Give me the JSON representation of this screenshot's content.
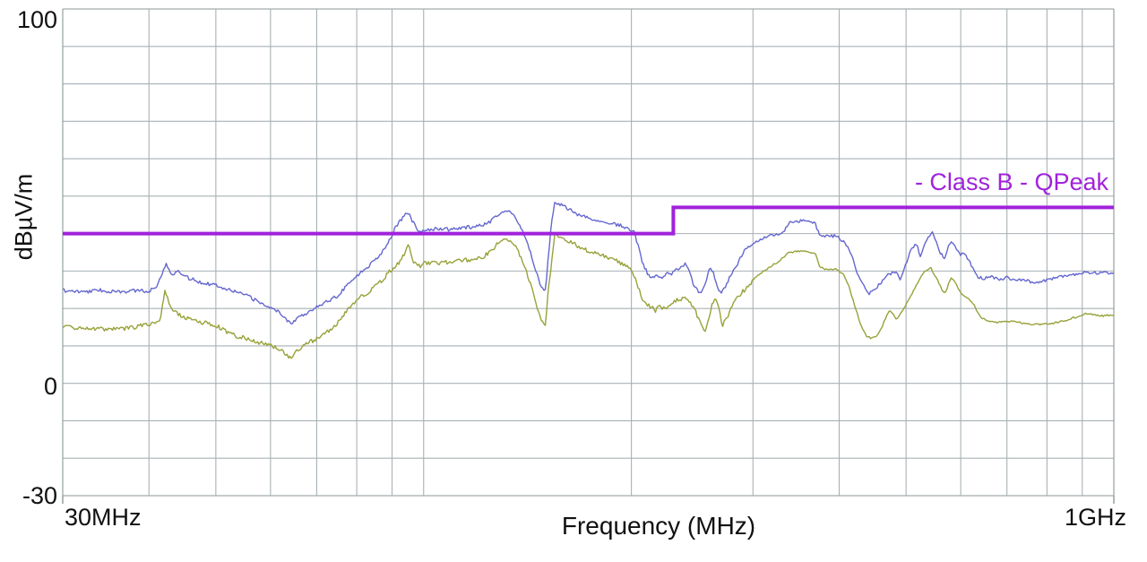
{
  "chart": {
    "y_axis": {
      "title": "dBµV/m",
      "tick_labels": {
        "top": "100",
        "zero": "0",
        "bottom": "-30"
      },
      "tick_values": [
        100,
        0,
        -30
      ],
      "min": -30,
      "max": 100,
      "grid_step_db": 10
    },
    "x_axis": {
      "title": "Frequency (MHz)",
      "start_label": "30MHz",
      "end_label": "1GHz",
      "min_mhz": 30,
      "max_mhz": 1000,
      "scale": "log",
      "gridline_frequencies_mhz": [
        30,
        40,
        50,
        60,
        70,
        80,
        90,
        100,
        200,
        300,
        400,
        500,
        600,
        700,
        800,
        900,
        1000
      ]
    },
    "legend": {
      "limit_label": "- Class B - QPeak"
    }
  },
  "colors": {
    "background": "#ffffff",
    "grid": "#a8b1b4",
    "border": "#8d979a",
    "text": "#111111",
    "limit": "#a122dc",
    "trace_blue": "#6467cf",
    "trace_olive": "#98a239"
  },
  "chart_data": {
    "type": "line",
    "title": "",
    "xlabel": "Frequency (MHz)",
    "ylabel": "dBµV/m",
    "x_scale": "log",
    "x_range_mhz": [
      30,
      1000
    ],
    "y_range_dbuv_m": [
      -30,
      100
    ],
    "grid": true,
    "legend_position": "top-right-inside",
    "limit_line": {
      "label": "- Class B - QPeak",
      "color": "#a122dc",
      "segments_mhz_db": [
        [
          30,
          40
        ],
        [
          230,
          40
        ],
        [
          230,
          47
        ],
        [
          1000,
          47
        ]
      ]
    },
    "series": [
      {
        "name": "trace_blue_peak",
        "color": "#6467cf",
        "seed": 7,
        "noise": {
          "amp_low": 2.0,
          "amp_high": 1.7,
          "split_mhz": 300
        },
        "points_mhz_db": [
          [
            30,
            24.8
          ],
          [
            32,
            24.4
          ],
          [
            34,
            24.9
          ],
          [
            36,
            24.3
          ],
          [
            38,
            24.8
          ],
          [
            40,
            24.6
          ],
          [
            41,
            26
          ],
          [
            42.3,
            31.8
          ],
          [
            43.2,
            29
          ],
          [
            44,
            30.3
          ],
          [
            45,
            28.5
          ],
          [
            46,
            27.9
          ],
          [
            48,
            26.8
          ],
          [
            50,
            26.3
          ],
          [
            52,
            25.2
          ],
          [
            54,
            24.2
          ],
          [
            56,
            23
          ],
          [
            58,
            21.5
          ],
          [
            60,
            20.3
          ],
          [
            62,
            18.8
          ],
          [
            63.5,
            16.8
          ],
          [
            64.3,
            15.9
          ],
          [
            65.5,
            17.5
          ],
          [
            67,
            18.4
          ],
          [
            69,
            19.8
          ],
          [
            71,
            21
          ],
          [
            73,
            22.2
          ],
          [
            75,
            23.3
          ],
          [
            78,
            27
          ],
          [
            81,
            29.5
          ],
          [
            84,
            32
          ],
          [
            87,
            35
          ],
          [
            89,
            38
          ],
          [
            91,
            41.5
          ],
          [
            93,
            44
          ],
          [
            94.7,
            45.8
          ],
          [
            96,
            44
          ],
          [
            97.5,
            41.5
          ],
          [
            99,
            40.3
          ],
          [
            101,
            40.9
          ],
          [
            105,
            41.3
          ],
          [
            110,
            41.1
          ],
          [
            115,
            41.6
          ],
          [
            120,
            42
          ],
          [
            124,
            42.7
          ],
          [
            127,
            44.5
          ],
          [
            130,
            46
          ],
          [
            132,
            46.2
          ],
          [
            134,
            45.6
          ],
          [
            136,
            44
          ],
          [
            138,
            42
          ],
          [
            140,
            39.5
          ],
          [
            142,
            36.5
          ],
          [
            144,
            32.5
          ],
          [
            146,
            29
          ],
          [
            148,
            26
          ],
          [
            150,
            24.6
          ],
          [
            151.5,
            33
          ],
          [
            153,
            42
          ],
          [
            155,
            48.6
          ],
          [
            158,
            47.8
          ],
          [
            162,
            46.5
          ],
          [
            167,
            45.2
          ],
          [
            172,
            44.3
          ],
          [
            178,
            43.6
          ],
          [
            185,
            43
          ],
          [
            192,
            42.3
          ],
          [
            198,
            41.2
          ],
          [
            202,
            40.3
          ],
          [
            205,
            36
          ],
          [
            208,
            31.5
          ],
          [
            211,
            29.5
          ],
          [
            214,
            28.3
          ],
          [
            218,
            28.8
          ],
          [
            222,
            28.2
          ],
          [
            225,
            29.3
          ],
          [
            228,
            29
          ],
          [
            232,
            30.2
          ],
          [
            236,
            31.3
          ],
          [
            239,
            31.8
          ],
          [
            243,
            29.8
          ],
          [
            246,
            26
          ],
          [
            250,
            24.4
          ],
          [
            253,
            24
          ],
          [
            257,
            28
          ],
          [
            260,
            31.5
          ],
          [
            263,
            29.5
          ],
          [
            267,
            25.5
          ],
          [
            270,
            24.3
          ],
          [
            274,
            26
          ],
          [
            278,
            28.5
          ],
          [
            283,
            31
          ],
          [
            288,
            33.5
          ],
          [
            292,
            35.4
          ],
          [
            300,
            37.5
          ],
          [
            307,
            38.5
          ],
          [
            313,
            39.2
          ],
          [
            320,
            39.7
          ],
          [
            328,
            39.9
          ],
          [
            334,
            41
          ],
          [
            338,
            42.9
          ],
          [
            345,
            43.3
          ],
          [
            355,
            43.5
          ],
          [
            365,
            43.2
          ],
          [
            370,
            42.5
          ],
          [
            372,
            40.8
          ],
          [
            376,
            39.4
          ],
          [
            385,
            39.3
          ],
          [
            395,
            39.4
          ],
          [
            400,
            38.9
          ],
          [
            406,
            37.7
          ],
          [
            412,
            36.2
          ],
          [
            418,
            33.5
          ],
          [
            424,
            30
          ],
          [
            430,
            27.5
          ],
          [
            436,
            25.3
          ],
          [
            442,
            24
          ],
          [
            448,
            24.6
          ],
          [
            455,
            26
          ],
          [
            460,
            27
          ],
          [
            466,
            28.5
          ],
          [
            471,
            28.9
          ],
          [
            478,
            29.5
          ],
          [
            484,
            29.9
          ],
          [
            490,
            27.8
          ],
          [
            497,
            30.5
          ],
          [
            503,
            33.5
          ],
          [
            509,
            36.1
          ],
          [
            515,
            36.8
          ],
          [
            520,
            36.4
          ],
          [
            524,
            34
          ],
          [
            530,
            36.5
          ],
          [
            537,
            38.5
          ],
          [
            546,
            40.2
          ],
          [
            555,
            37
          ],
          [
            562,
            34.5
          ],
          [
            569,
            33.5
          ],
          [
            575,
            36.5
          ],
          [
            582,
            38.3
          ],
          [
            590,
            36
          ],
          [
            598,
            34.3
          ],
          [
            607,
            34.6
          ],
          [
            617,
            33
          ],
          [
            627,
            30.1
          ],
          [
            637,
            28.3
          ],
          [
            650,
            28
          ],
          [
            665,
            28.4
          ],
          [
            680,
            27.8
          ],
          [
            700,
            28.2
          ],
          [
            720,
            27.7
          ],
          [
            745,
            27.4
          ],
          [
            773,
            27
          ],
          [
            800,
            27.5
          ],
          [
            830,
            28.3
          ],
          [
            860,
            28.8
          ],
          [
            890,
            29.3
          ],
          [
            910,
            29.9
          ],
          [
            940,
            29.4
          ],
          [
            965,
            29.7
          ],
          [
            1000,
            29.5
          ]
        ]
      },
      {
        "name": "trace_olive_average",
        "color": "#98a239",
        "seed": 13,
        "noise": {
          "amp_low": 2.4,
          "amp_high": 1.0,
          "split_mhz": 300
        },
        "points_mhz_db": [
          [
            30,
            15
          ],
          [
            33,
            14.5
          ],
          [
            36,
            14.4
          ],
          [
            38,
            15
          ],
          [
            40,
            15.8
          ],
          [
            41.5,
            17
          ],
          [
            42.2,
            25.1
          ],
          [
            43,
            20
          ],
          [
            44,
            18.5
          ],
          [
            46,
            17
          ],
          [
            48,
            16.2
          ],
          [
            50,
            15.5
          ],
          [
            52,
            13.5
          ],
          [
            54,
            12.5
          ],
          [
            57,
            11.2
          ],
          [
            60,
            10.3
          ],
          [
            62,
            9
          ],
          [
            64,
            6.7
          ],
          [
            66,
            9.3
          ],
          [
            68,
            10.8
          ],
          [
            71,
            12.5
          ],
          [
            75,
            16
          ],
          [
            78,
            20
          ],
          [
            81,
            23
          ],
          [
            84,
            25
          ],
          [
            87,
            27.5
          ],
          [
            90,
            30.6
          ],
          [
            92,
            32
          ],
          [
            94,
            35
          ],
          [
            95,
            37.4
          ],
          [
            96,
            34
          ],
          [
            97,
            32
          ],
          [
            98.6,
            31.3
          ],
          [
            100,
            32
          ],
          [
            103,
            32.4
          ],
          [
            106,
            32.2
          ],
          [
            110,
            32.5
          ],
          [
            114,
            32.8
          ],
          [
            118,
            33
          ],
          [
            122,
            33.8
          ],
          [
            126,
            36
          ],
          [
            129,
            37.8
          ],
          [
            131,
            38.4
          ],
          [
            134,
            37.8
          ],
          [
            137,
            35.5
          ],
          [
            140,
            31.5
          ],
          [
            143,
            26
          ],
          [
            146,
            20.5
          ],
          [
            148,
            17
          ],
          [
            150,
            15.3
          ],
          [
            152,
            27
          ],
          [
            155,
            39.8
          ],
          [
            158,
            39
          ],
          [
            162,
            38
          ],
          [
            167,
            36.8
          ],
          [
            172,
            35.6
          ],
          [
            178,
            34.7
          ],
          [
            184,
            33.9
          ],
          [
            190,
            32.8
          ],
          [
            195,
            31.8
          ],
          [
            200,
            30
          ],
          [
            203,
            27.5
          ],
          [
            206,
            24
          ],
          [
            209,
            21.5
          ],
          [
            212,
            20.8
          ],
          [
            215,
            20.2
          ],
          [
            217,
            19.4
          ],
          [
            219,
            21.3
          ],
          [
            221,
            19.6
          ],
          [
            224,
            20.3
          ],
          [
            228,
            21.2
          ],
          [
            231,
            21.9
          ],
          [
            235,
            22.4
          ],
          [
            239,
            22.7
          ],
          [
            243,
            21.6
          ],
          [
            247,
            19.9
          ],
          [
            251,
            16.5
          ],
          [
            254,
            14.2
          ],
          [
            256,
            13.9
          ],
          [
            259,
            17.5
          ],
          [
            262,
            21.8
          ],
          [
            265,
            22.3
          ],
          [
            268,
            19.5
          ],
          [
            271,
            15.6
          ],
          [
            275,
            17.2
          ],
          [
            280,
            21
          ],
          [
            286,
            23.3
          ],
          [
            292,
            25.1
          ],
          [
            300,
            27.5
          ],
          [
            308,
            29.5
          ],
          [
            316,
            30.8
          ],
          [
            325,
            32.3
          ],
          [
            332,
            33.6
          ],
          [
            338,
            34.9
          ],
          [
            345,
            35.2
          ],
          [
            355,
            35.3
          ],
          [
            365,
            35
          ],
          [
            370,
            34.6
          ],
          [
            374,
            31.5
          ],
          [
            380,
            30.4
          ],
          [
            390,
            30.3
          ],
          [
            398,
            30.5
          ],
          [
            406,
            28.9
          ],
          [
            414,
            25.5
          ],
          [
            422,
            20.3
          ],
          [
            430,
            15.5
          ],
          [
            438,
            12.7
          ],
          [
            445,
            12.1
          ],
          [
            452,
            12.5
          ],
          [
            460,
            14.5
          ],
          [
            470,
            18.7
          ],
          [
            475,
            19.4
          ],
          [
            484,
            17
          ],
          [
            490,
            18.5
          ],
          [
            500,
            21
          ],
          [
            510,
            24
          ],
          [
            520,
            27
          ],
          [
            530,
            29.5
          ],
          [
            542,
            31.1
          ],
          [
            552,
            28.5
          ],
          [
            562,
            25.5
          ],
          [
            569,
            23.9
          ],
          [
            576,
            26.5
          ],
          [
            582,
            28.2
          ],
          [
            590,
            27
          ],
          [
            598,
            24.5
          ],
          [
            607,
            23.5
          ],
          [
            617,
            22.5
          ],
          [
            627,
            21.1
          ],
          [
            635,
            19
          ],
          [
            641,
            17.5
          ],
          [
            655,
            16.8
          ],
          [
            680,
            16.3
          ],
          [
            710,
            16.6
          ],
          [
            740,
            16
          ],
          [
            770,
            15.7
          ],
          [
            800,
            15.9
          ],
          [
            830,
            16.3
          ],
          [
            860,
            17.1
          ],
          [
            890,
            17.9
          ],
          [
            910,
            18.7
          ],
          [
            935,
            18.3
          ],
          [
            965,
            18
          ],
          [
            1000,
            18.3
          ]
        ]
      }
    ]
  }
}
